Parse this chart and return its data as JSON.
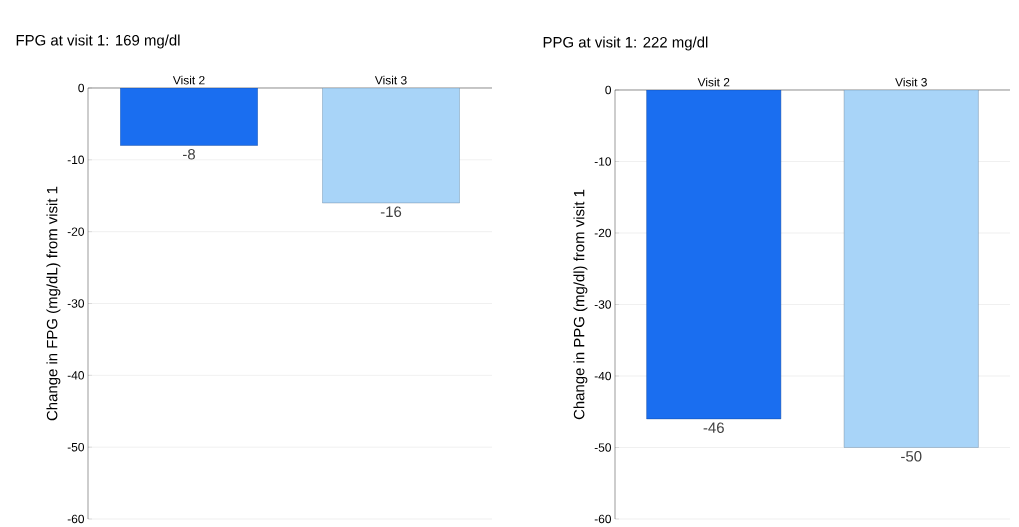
{
  "chart_data": [
    {
      "type": "bar",
      "title": "FPG at visit 1: 169 mg/dl",
      "ylabel": "Change in FPG (mg/dL) from visit 1",
      "categories": [
        "Visit 2",
        "Visit 3"
      ],
      "values": [
        -8,
        -16
      ],
      "colors": [
        "#1a6ef0",
        "#a8d4f8"
      ],
      "ylim": [
        -60,
        0
      ],
      "yticks": [
        -60,
        -50,
        -40,
        -30,
        -20,
        -10,
        0
      ],
      "grid": "y",
      "data_labels": true
    },
    {
      "type": "bar",
      "title": "PPG at visit 1: 222 mg/dl",
      "ylabel": "Change in PPG (mg/dl) from visit 1",
      "categories": [
        "Visit 2",
        "Visit 3"
      ],
      "values": [
        -46,
        -50
      ],
      "colors": [
        "#1a6ef0",
        "#a8d4f8"
      ],
      "ylim": [
        -60,
        0
      ],
      "yticks": [
        -60,
        -50,
        -40,
        -30,
        -20,
        -10,
        0
      ],
      "grid": "y",
      "data_labels": true
    }
  ]
}
